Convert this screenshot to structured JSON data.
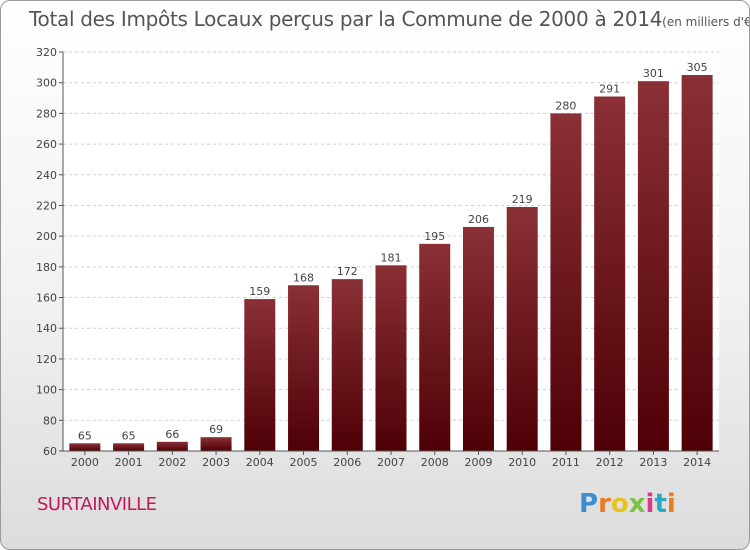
{
  "chart_data": {
    "type": "bar",
    "title": "Total des Impôts Locaux perçus par la Commune de 2000 à 2014",
    "unit": "(en milliers d'€)",
    "categories": [
      "2000",
      "2001",
      "2002",
      "2003",
      "2004",
      "2005",
      "2006",
      "2007",
      "2008",
      "2009",
      "2010",
      "2011",
      "2012",
      "2013",
      "2014"
    ],
    "values": [
      65,
      65,
      66,
      69,
      159,
      168,
      172,
      181,
      195,
      206,
      219,
      280,
      291,
      301,
      305
    ],
    "ylim": [
      60,
      320
    ],
    "yticks": [
      60,
      80,
      100,
      120,
      140,
      160,
      180,
      200,
      220,
      240,
      260,
      280,
      300,
      320
    ],
    "xlabel": "",
    "ylabel": "",
    "grid": true,
    "bar_color": "#6e1a1f"
  },
  "commune": "SURTAINVILLE",
  "logo": {
    "letters": [
      "P",
      "r",
      "o",
      "x",
      "i",
      "t",
      "i"
    ],
    "colors": [
      "#3a8fd0",
      "#e87c1e",
      "#e8c21e",
      "#7cc242",
      "#d93a8a",
      "#2aa8c4",
      "#e87c1e"
    ]
  }
}
